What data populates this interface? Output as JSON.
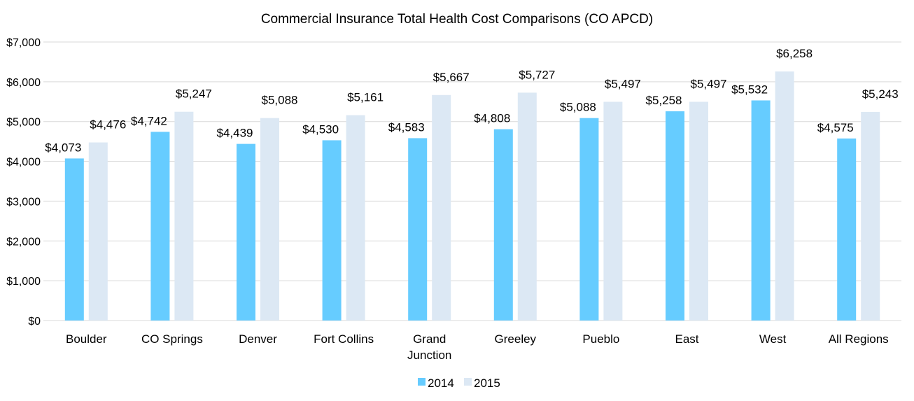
{
  "chart_data": {
    "type": "bar",
    "title": "Commercial Insurance Total Health Cost Comparisons (CO APCD)",
    "xlabel": "",
    "ylabel": "",
    "ylim": [
      0,
      7000
    ],
    "yticks": [
      0,
      1000,
      2000,
      3000,
      4000,
      5000,
      6000,
      7000
    ],
    "ytick_labels": [
      "$0",
      "$1,000",
      "$2,000",
      "$3,000",
      "$4,000",
      "$5,000",
      "$6,000",
      "$7,000"
    ],
    "grid": true,
    "legend_position": "bottom",
    "categories": [
      [
        "Boulder"
      ],
      [
        "CO Springs"
      ],
      [
        "Denver"
      ],
      [
        "Fort Collins"
      ],
      [
        "Grand",
        "Junction"
      ],
      [
        "Greeley"
      ],
      [
        "Pueblo"
      ],
      [
        "East"
      ],
      [
        "West"
      ],
      [
        "All Regions"
      ]
    ],
    "series": [
      {
        "name": "2014",
        "color": "#66CCFF",
        "values": [
          4073,
          4742,
          4439,
          4530,
          4583,
          4808,
          5088,
          5258,
          5532,
          4575
        ],
        "labels": [
          "$4,073",
          "$4,742",
          "$4,439",
          "$4,530",
          "$4,583",
          "$4,808",
          "$5,088",
          "$5,258",
          "$5,532",
          "$4,575"
        ]
      },
      {
        "name": "2015",
        "color": "#DCE8F4",
        "values": [
          4476,
          5247,
          5088,
          5161,
          5667,
          5727,
          5497,
          5497,
          6258,
          5243
        ],
        "labels": [
          "$4,476",
          "$5,247",
          "$5,088",
          "$5,161",
          "$5,667",
          "$5,727",
          "$5,497",
          "$5,497",
          "$6,258",
          "$5,243"
        ]
      }
    ]
  }
}
